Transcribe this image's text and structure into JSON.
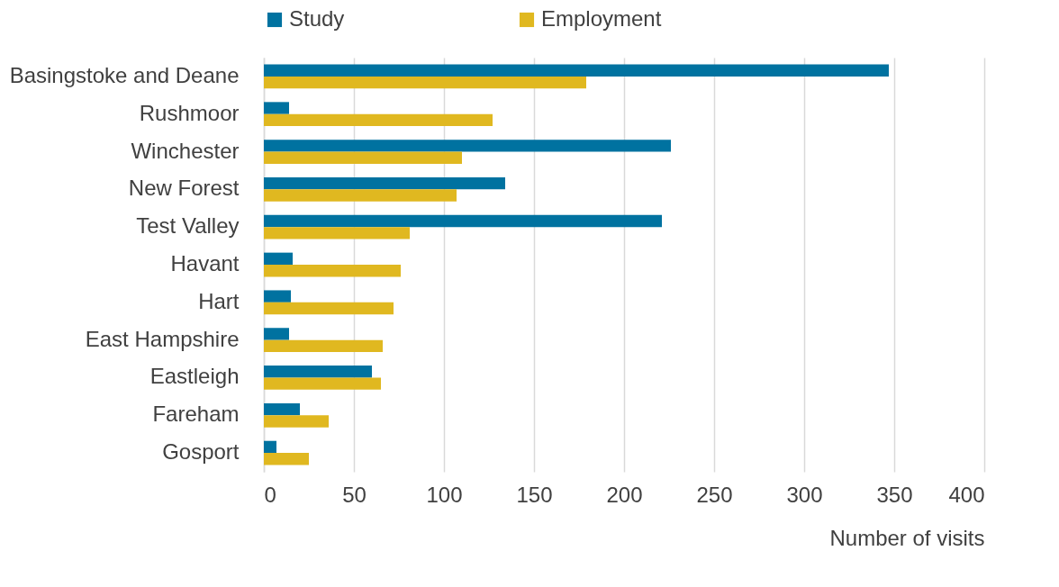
{
  "chart_data": {
    "type": "bar",
    "orientation": "horizontal",
    "xlabel": "Number of visits",
    "categories": [
      "Basingstoke and Deane",
      "Rushmoor",
      "Winchester",
      "New Forest",
      "Test Valley",
      "Havant",
      "Hart",
      "East Hampshire",
      "Eastleigh",
      "Fareham",
      "Gosport"
    ],
    "series": [
      {
        "name": "Study",
        "color": "#0072a0",
        "values": [
          347,
          14,
          226,
          134,
          221,
          16,
          15,
          14,
          60,
          20,
          7
        ]
      },
      {
        "name": "Employment",
        "color": "#e0b820",
        "values": [
          179,
          127,
          110,
          107,
          81,
          76,
          72,
          66,
          65,
          36,
          25
        ]
      }
    ],
    "xlim": [
      0,
      400
    ],
    "xticks": [
      0,
      50,
      100,
      150,
      200,
      250,
      300,
      350,
      400
    ],
    "grid": "x",
    "legend": "top"
  }
}
